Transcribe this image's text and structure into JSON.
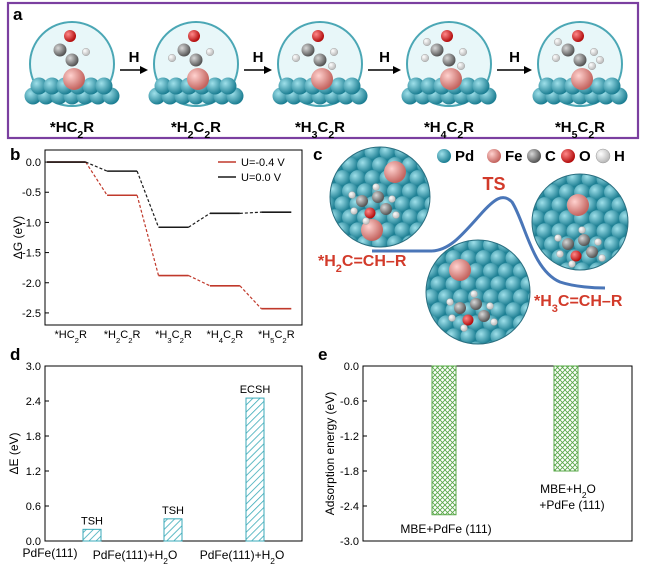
{
  "panels": {
    "a": "a",
    "b": "b",
    "c": "c",
    "d": "d",
    "e": "e"
  },
  "panel_a": {
    "arrow_label": "H",
    "species": [
      {
        "pre": "*H",
        "sub": "",
        "mid": "C",
        "sub2": "2",
        "post": "R"
      },
      {
        "pre": "*H",
        "sub": "2",
        "mid": "C",
        "sub2": "2",
        "post": "R"
      },
      {
        "pre": "*H",
        "sub": "3",
        "mid": "C",
        "sub2": "2",
        "post": "R"
      },
      {
        "pre": "*H",
        "sub": "4",
        "mid": "C",
        "sub2": "2",
        "post": "R"
      },
      {
        "pre": "*H",
        "sub": "5",
        "mid": "C",
        "sub2": "2",
        "post": "R"
      }
    ],
    "colors": {
      "border": "#7b3fa0",
      "circle_bg": "#e8f7f9",
      "circle_edge": "#4ba7b5"
    }
  },
  "panel_c": {
    "legend": [
      {
        "label": "Pd",
        "color": "#2a93a8"
      },
      {
        "label": "Fe",
        "color": "#e08a86"
      },
      {
        "label": "C",
        "color": "#7a7a7a"
      },
      {
        "label": "O",
        "color": "#d61f1f"
      },
      {
        "label": "H",
        "color": "#f2f2f2"
      }
    ],
    "ts_label": "TS",
    "reactant": "*H2C=CH–R",
    "product": "*H3C=CH–R",
    "curve_color": "#4a76b8"
  },
  "chart_data": [
    {
      "panel": "b",
      "type": "line",
      "ylabel": "ΔG (eV)",
      "ylim": [
        -2.7,
        0.2
      ],
      "yticks": [
        0.0,
        -0.5,
        -1.0,
        -1.5,
        -2.0,
        -2.5
      ],
      "ytick_labels": [
        "0.0",
        "-0.5",
        "-1.0",
        "-1.5",
        "-2.0",
        "-2.5"
      ],
      "categories": [
        "*HC2R",
        "*H2C2R",
        "*H3C2R",
        "*H4C2R",
        "*H5C2R"
      ],
      "category_labels": [
        {
          "a": "*HC",
          "b": "2",
          "c": "R",
          "hsub": ""
        },
        {
          "a": "*H",
          "b": "2",
          "c": "C",
          "d": "2",
          "e": "R"
        },
        {
          "a": "*H",
          "b": "3",
          "c": "C",
          "d": "2",
          "e": "R"
        },
        {
          "a": "*H",
          "b": "4",
          "c": "C",
          "d": "2",
          "e": "R"
        },
        {
          "a": "*H",
          "b": "5",
          "c": "C",
          "d": "2",
          "e": "R"
        }
      ],
      "series": [
        {
          "name": "U=-0.4 V",
          "color": "#c0392b",
          "values": [
            0.0,
            -0.55,
            -1.88,
            -2.05,
            -2.43
          ]
        },
        {
          "name": "U=0.0 V",
          "color": "#1a1a1a",
          "values": [
            0.0,
            -0.15,
            -1.08,
            -0.85,
            -0.83
          ]
        }
      ],
      "legend_position": "top-right"
    },
    {
      "panel": "d",
      "type": "bar",
      "ylabel": "ΔE (eV)",
      "ylim": [
        0.0,
        3.0
      ],
      "yticks": [
        0.0,
        0.6,
        1.2,
        1.8,
        2.4,
        3.0
      ],
      "ytick_labels": [
        "0.0",
        "0.6",
        "1.2",
        "1.8",
        "2.4",
        "3.0"
      ],
      "categories": [
        "PdFe(111)",
        "PdFe(111)+H2O",
        "PdFe(111)+H2O"
      ],
      "values": [
        0.2,
        0.38,
        2.45
      ],
      "bar_labels": [
        "TSH",
        "TSH",
        "ECSH"
      ],
      "color": "#3aaab8"
    },
    {
      "panel": "e",
      "type": "bar",
      "ylabel": "Adsorption energy (eV)",
      "ylim": [
        -3.0,
        0.0
      ],
      "yticks": [
        0.0,
        -0.6,
        -1.2,
        -1.8,
        -2.4,
        -3.0
      ],
      "ytick_labels": [
        "0.0",
        "-0.6",
        "-1.2",
        "-1.8",
        "-2.4",
        "-3.0"
      ],
      "values": [
        -2.55,
        -1.8
      ],
      "bar_labels": [
        {
          "l1a": "MBE+PdFe (111)"
        },
        {
          "l1a": "MBE+H",
          "l1s": "2",
          "l1b": "O",
          "l2": "+PdFe (111)"
        }
      ],
      "color": "#5aa84a"
    }
  ]
}
